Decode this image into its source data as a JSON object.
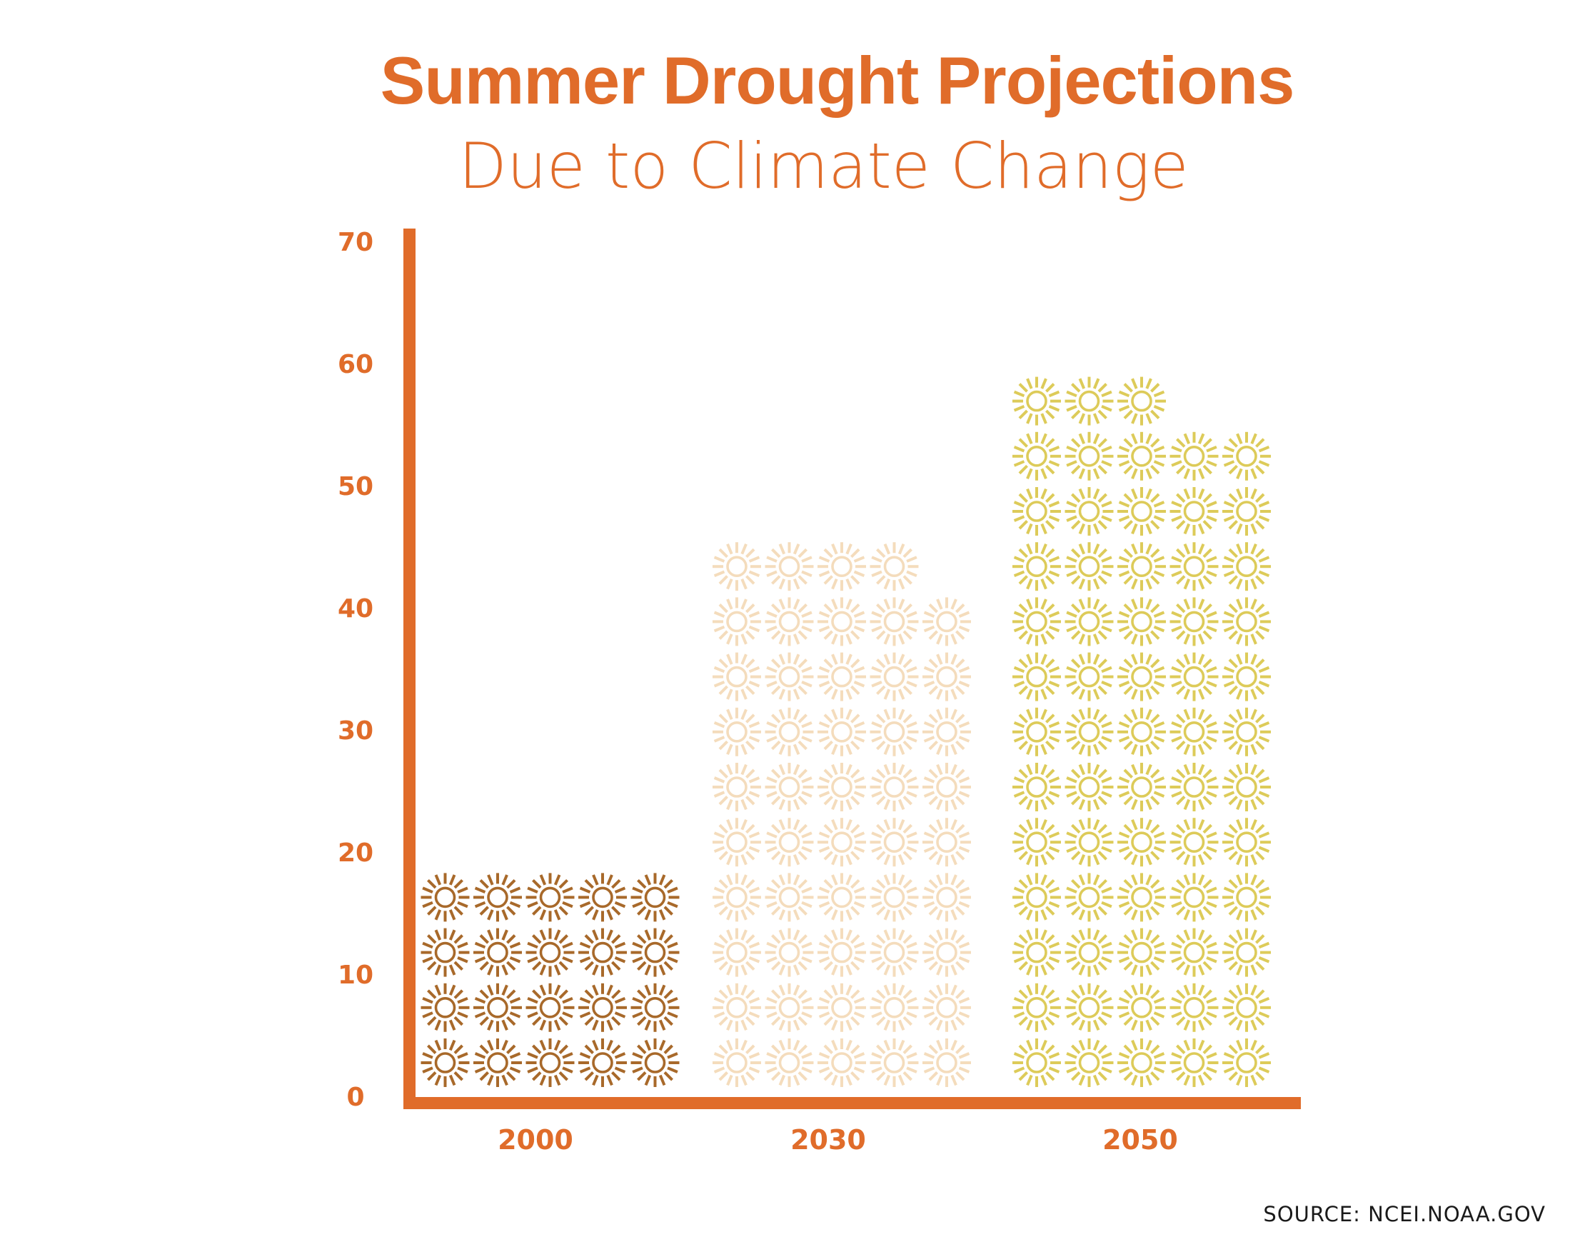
{
  "colors": {
    "accent": "#E06C2A",
    "text_dark": "#1A1A1A",
    "series_2000": "#A8692A",
    "series_2030": "#F4DCBC",
    "series_2050": "#DDCB59"
  },
  "icon": "sun-icon",
  "chart_data": {
    "type": "bar",
    "subtype": "pictograph",
    "title": "Summer Drought Projections",
    "subtitle": "Due to Climate Change",
    "categories": [
      "2000",
      "2030",
      "2050"
    ],
    "values": [
      18,
      45,
      59
    ],
    "icon_counts": [
      20,
      49,
      63
    ],
    "icons_per_row": 5,
    "xlabel": "",
    "ylabel": "",
    "ylim": [
      0,
      70
    ],
    "yticks": [
      0,
      10,
      20,
      30,
      40,
      50,
      60,
      70
    ],
    "ytick_labels": [
      "0",
      "10",
      "20",
      "30",
      "40",
      "50",
      "60",
      "70"
    ],
    "grid": false,
    "legend": "none",
    "source": "SOURCE: NCEI.NOAA.GOV"
  }
}
